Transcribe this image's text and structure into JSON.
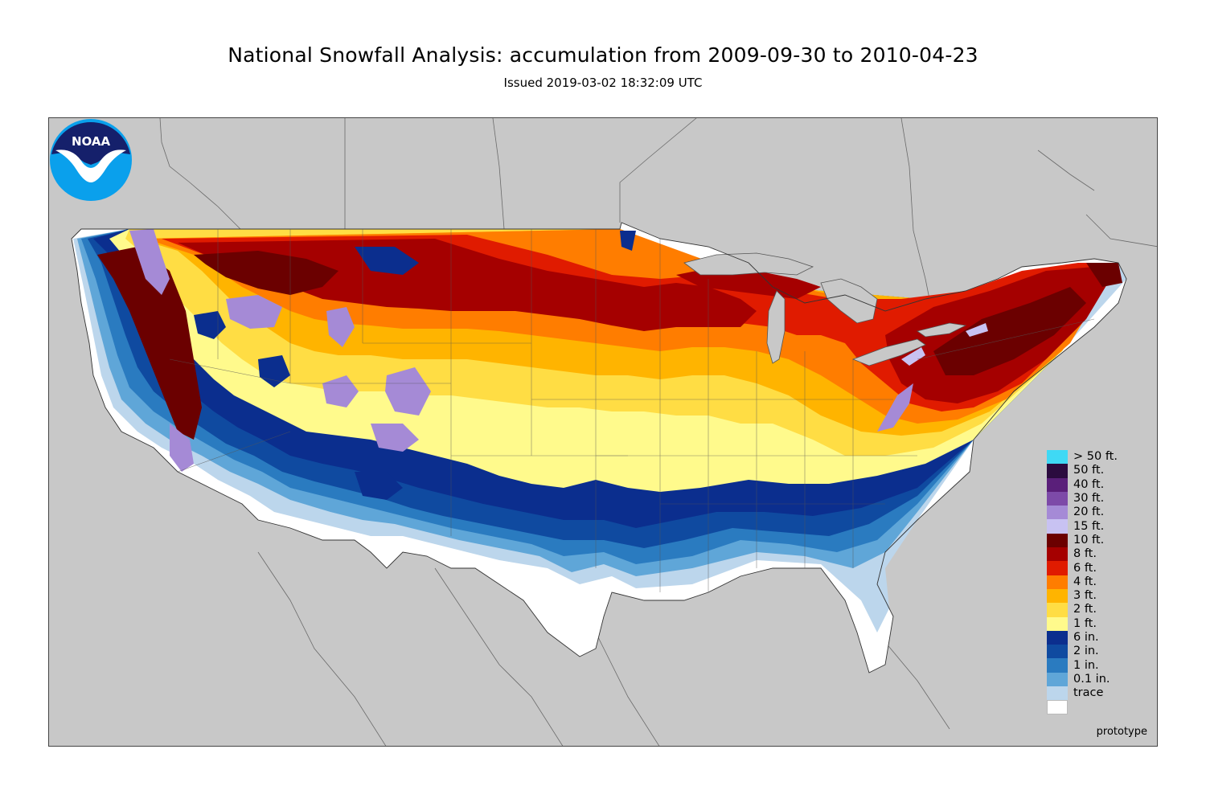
{
  "header": {
    "title": "National Snowfall Analysis: accumulation from 2009-09-30 to 2010-04-23",
    "issued": "Issued 2019-03-02 18:32:09 UTC"
  },
  "map": {
    "background_color": "#c8c8c8",
    "land_outline_color": "#555555",
    "watermark": "prototype",
    "logo": {
      "text": "NOAA",
      "icon": "noaa-logo-icon"
    }
  },
  "legend": [
    {
      "label": "> 50 ft.",
      "color": "#3fd9f5"
    },
    {
      "label": "50 ft.",
      "color": "#2b0b3f"
    },
    {
      "label": "40 ft.",
      "color": "#5a1f7a"
    },
    {
      "label": "30 ft.",
      "color": "#7d4aa8"
    },
    {
      "label": "20 ft.",
      "color": "#a58ad6"
    },
    {
      "label": "15 ft.",
      "color": "#c8c2f2"
    },
    {
      "label": "10 ft.",
      "color": "#6b0000"
    },
    {
      "label": "8 ft.",
      "color": "#a50000"
    },
    {
      "label": "6 ft.",
      "color": "#e01b00"
    },
    {
      "label": "4 ft.",
      "color": "#ff7d00"
    },
    {
      "label": "3 ft.",
      "color": "#ffb400"
    },
    {
      "label": "2 ft.",
      "color": "#ffdd44"
    },
    {
      "label": "1 ft.",
      "color": "#fffa8c"
    },
    {
      "label": "6 in.",
      "color": "#0b2e8e"
    },
    {
      "label": "2 in.",
      "color": "#0f4aa0"
    },
    {
      "label": "1 in.",
      "color": "#2a7bc0"
    },
    {
      "label": "0.1 in.",
      "color": "#5fa6d8"
    },
    {
      "label": "trace",
      "color": "#bcd6ec"
    },
    {
      "label": "",
      "color": "#ffffff"
    }
  ]
}
